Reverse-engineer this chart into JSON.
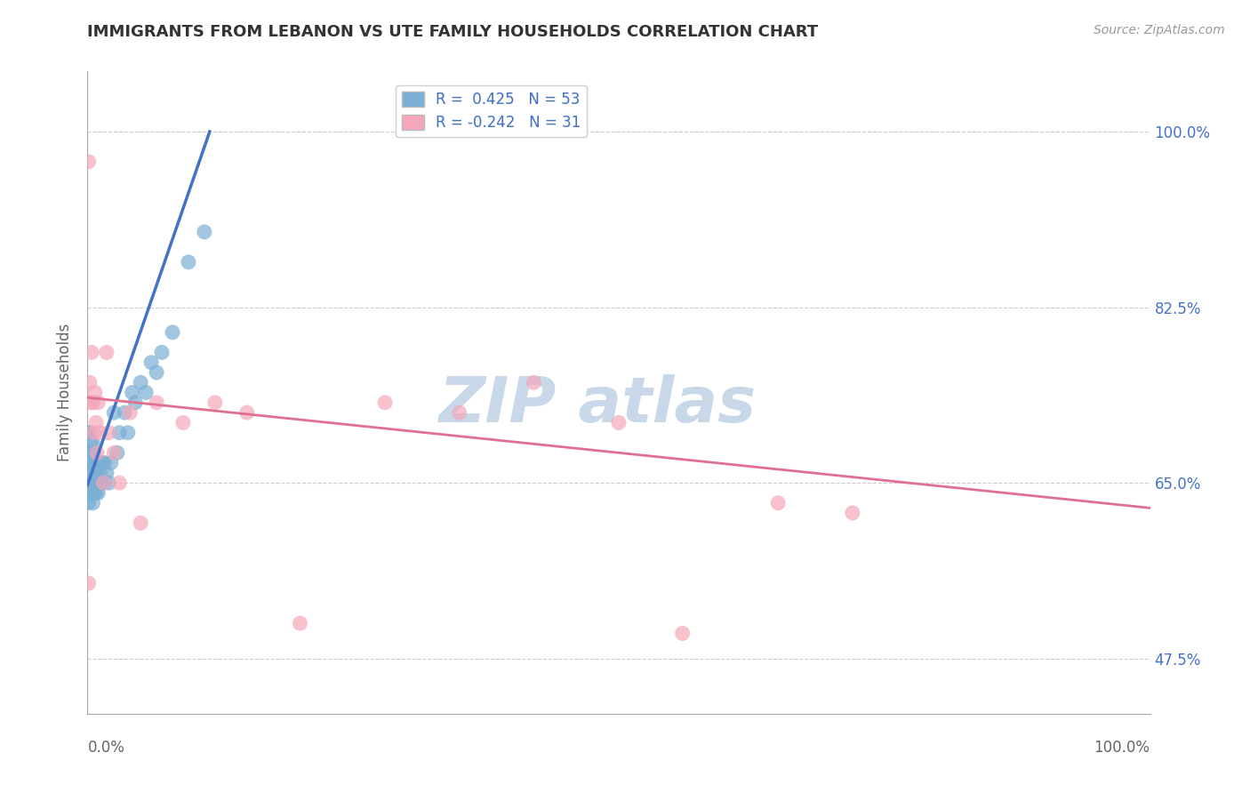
{
  "title": "IMMIGRANTS FROM LEBANON VS UTE FAMILY HOUSEHOLDS CORRELATION CHART",
  "source": "Source: ZipAtlas.com",
  "ylabel": "Family Households",
  "ytick_values": [
    0.475,
    0.65,
    0.825,
    1.0
  ],
  "xlim": [
    0.0,
    1.0
  ],
  "ylim": [
    0.42,
    1.06
  ],
  "blue_color": "#7bafd4",
  "pink_color": "#f4a7b9",
  "blue_line_color": "#4472c4",
  "pink_line_color": "#e07090",
  "watermark_text": "ZIP atlas",
  "watermark_color": "#c8d8e8",
  "background_color": "#ffffff",
  "grid_color": "#cccccc",
  "title_color": "#333333",
  "blue_scatter_x": [
    0.001,
    0.001,
    0.001,
    0.001,
    0.001,
    0.002,
    0.002,
    0.002,
    0.002,
    0.003,
    0.003,
    0.003,
    0.004,
    0.004,
    0.004,
    0.005,
    0.005,
    0.005,
    0.005,
    0.006,
    0.006,
    0.006,
    0.007,
    0.007,
    0.008,
    0.008,
    0.009,
    0.01,
    0.01,
    0.011,
    0.012,
    0.013,
    0.014,
    0.015,
    0.016,
    0.018,
    0.02,
    0.022,
    0.025,
    0.028,
    0.03,
    0.035,
    0.038,
    0.042,
    0.045,
    0.05,
    0.055,
    0.06,
    0.065,
    0.07,
    0.08,
    0.095,
    0.11
  ],
  "blue_scatter_y": [
    0.63,
    0.65,
    0.67,
    0.68,
    0.7,
    0.64,
    0.66,
    0.68,
    0.7,
    0.65,
    0.67,
    0.69,
    0.64,
    0.66,
    0.68,
    0.63,
    0.65,
    0.67,
    0.69,
    0.64,
    0.66,
    0.68,
    0.65,
    0.67,
    0.64,
    0.66,
    0.65,
    0.64,
    0.67,
    0.65,
    0.66,
    0.65,
    0.67,
    0.65,
    0.67,
    0.66,
    0.65,
    0.67,
    0.72,
    0.68,
    0.7,
    0.72,
    0.7,
    0.74,
    0.73,
    0.75,
    0.74,
    0.77,
    0.76,
    0.78,
    0.8,
    0.87,
    0.9
  ],
  "pink_scatter_x": [
    0.001,
    0.001,
    0.002,
    0.003,
    0.004,
    0.005,
    0.006,
    0.007,
    0.008,
    0.009,
    0.01,
    0.012,
    0.015,
    0.018,
    0.02,
    0.025,
    0.03,
    0.04,
    0.05,
    0.065,
    0.09,
    0.12,
    0.15,
    0.2,
    0.28,
    0.35,
    0.42,
    0.5,
    0.56,
    0.65,
    0.72
  ],
  "pink_scatter_y": [
    0.97,
    0.55,
    0.75,
    0.73,
    0.78,
    0.73,
    0.7,
    0.74,
    0.71,
    0.68,
    0.73,
    0.7,
    0.65,
    0.78,
    0.7,
    0.68,
    0.65,
    0.72,
    0.61,
    0.73,
    0.71,
    0.73,
    0.72,
    0.51,
    0.73,
    0.72,
    0.75,
    0.71,
    0.5,
    0.63,
    0.62
  ],
  "blue_line_x0": 0.0,
  "blue_line_y0": 0.648,
  "blue_line_x1": 0.115,
  "blue_line_y1": 1.0,
  "pink_line_x0": 0.0,
  "pink_line_y0": 0.735,
  "pink_line_x1": 1.0,
  "pink_line_y1": 0.625
}
